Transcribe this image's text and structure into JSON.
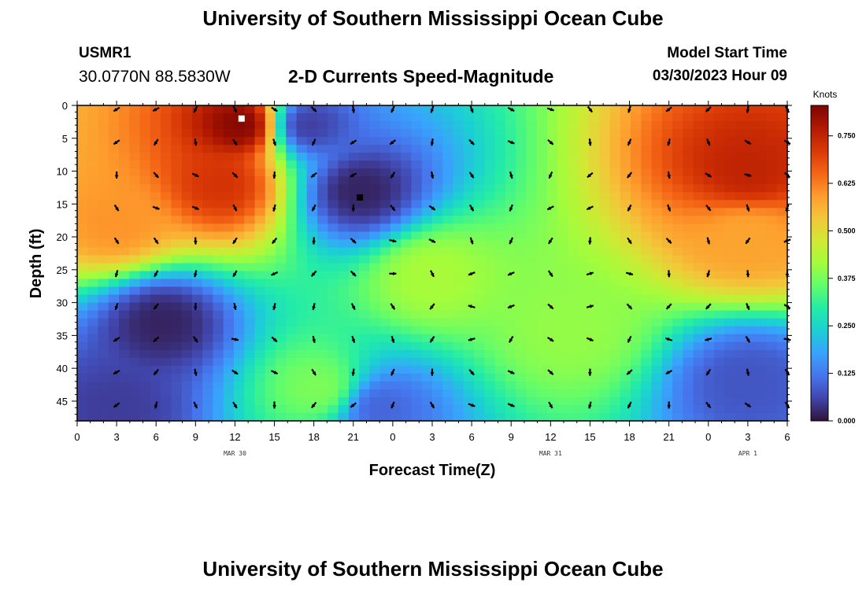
{
  "page": {
    "title": "University of Southern Mississippi Ocean Cube",
    "footer_title": "University of Southern Mississippi Ocean Cube",
    "station_id": "USMR1",
    "coordinates": "30.0770N  88.5830W",
    "plot_title": "2-D Currents Speed-Magnitude",
    "model_start_label": "Model Start Time",
    "model_start_value": "03/30/2023 Hour 09"
  },
  "chart_data": {
    "type": "heatmap",
    "title": "2-D Currents Speed-Magnitude",
    "xlabel": "Forecast Time(Z)",
    "ylabel": "Depth (ft)",
    "x_hours_range": [
      0,
      54
    ],
    "x_tick_labels": [
      "0",
      "3",
      "6",
      "9",
      "12",
      "15",
      "18",
      "21",
      "0",
      "3",
      "6",
      "9",
      "12",
      "15",
      "18",
      "21",
      "0",
      "3",
      "6"
    ],
    "x_date_labels": [
      {
        "label": "MAR 30",
        "hour": 12
      },
      {
        "label": "MAR 31",
        "hour": 36
      },
      {
        "label": "APR 1",
        "hour": 51
      }
    ],
    "y_ticks": [
      0,
      5,
      10,
      15,
      20,
      25,
      30,
      35,
      40,
      45
    ],
    "y_range": [
      0,
      48
    ],
    "y_inverted": true,
    "colorbar": {
      "unit": "Knots",
      "ticks": [
        "0.000",
        "0.125",
        "0.250",
        "0.375",
        "0.500",
        "0.625",
        "0.750"
      ],
      "range": [
        0,
        0.83
      ],
      "colors": [
        "#30123b",
        "#4145ab",
        "#4675ed",
        "#39a2fc",
        "#1bcfd4",
        "#24eca6",
        "#61fc6c",
        "#a4fc3b",
        "#d1e834",
        "#f3c63a",
        "#fe9b2d",
        "#f36315",
        "#d93806",
        "#b11901",
        "#7a0402"
      ]
    },
    "speed_hotspots": [
      {
        "hour": 12.5,
        "depth": 3,
        "value": 0.82
      },
      {
        "hour": 11,
        "depth": 12,
        "value": 0.72
      },
      {
        "hour": 3,
        "depth": 18,
        "value": 0.6
      },
      {
        "hour": 51,
        "depth": 10,
        "value": 0.75
      },
      {
        "hour": 51,
        "depth": 20,
        "value": 0.58
      },
      {
        "hour": 21.5,
        "depth": 13,
        "value": 0.02
      },
      {
        "hour": 17.5,
        "depth": 3,
        "value": 0.05
      },
      {
        "hour": 6.5,
        "depth": 33,
        "value": 0.02
      },
      {
        "hour": 3,
        "depth": 46,
        "value": 0.05
      },
      {
        "hour": 27,
        "depth": 26,
        "value": 0.42
      },
      {
        "hour": 37.5,
        "depth": 34,
        "value": 0.4
      },
      {
        "hour": 18.5,
        "depth": 43,
        "value": 0.38
      },
      {
        "hour": 51,
        "depth": 42,
        "value": 0.08
      },
      {
        "hour": 23,
        "depth": 46,
        "value": 0.1
      }
    ],
    "markers": [
      {
        "hour": 12.5,
        "depth": 2,
        "color": "#ffffff"
      },
      {
        "hour": 21.5,
        "depth": 14,
        "color": "#000000"
      }
    ]
  }
}
